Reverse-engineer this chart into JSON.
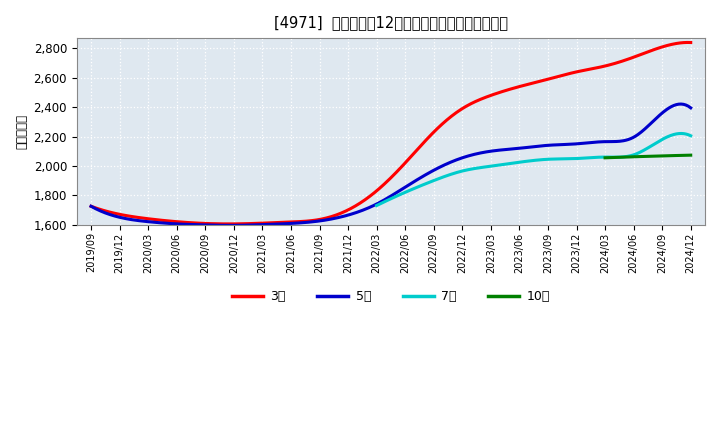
{
  "title": "[4971]  当期純利益12か月移動合計の平均値の推移",
  "ylabel": "（百万円）",
  "ylim": [
    1600,
    2870
  ],
  "yticks": [
    1600,
    1800,
    2000,
    2200,
    2400,
    2600,
    2800
  ],
  "background_color": "#ffffff",
  "plot_bg_color": "#dfe8f0",
  "grid_color": "#ffffff",
  "series": {
    "3year": {
      "color": "#ff0000",
      "label": "3年",
      "points": [
        [
          "2019/09",
          1725
        ],
        [
          "2019/12",
          1670
        ],
        [
          "2020/03",
          1640
        ],
        [
          "2020/06",
          1620
        ],
        [
          "2020/09",
          1608
        ],
        [
          "2020/12",
          1605
        ],
        [
          "2021/03",
          1610
        ],
        [
          "2021/06",
          1618
        ],
        [
          "2021/09",
          1635
        ],
        [
          "2021/12",
          1700
        ],
        [
          "2022/03",
          1830
        ],
        [
          "2022/06",
          2020
        ],
        [
          "2022/09",
          2230
        ],
        [
          "2022/12",
          2390
        ],
        [
          "2023/03",
          2480
        ],
        [
          "2023/06",
          2540
        ],
        [
          "2023/09",
          2590
        ],
        [
          "2023/12",
          2640
        ],
        [
          "2024/03",
          2680
        ],
        [
          "2024/06",
          2740
        ],
        [
          "2024/09",
          2810
        ],
        [
          "2024/12",
          2840
        ]
      ]
    },
    "5year": {
      "color": "#0000cc",
      "label": "5年",
      "points": [
        [
          "2019/09",
          1725
        ],
        [
          "2019/12",
          1650
        ],
        [
          "2020/03",
          1620
        ],
        [
          "2020/06",
          1605
        ],
        [
          "2020/09",
          1598
        ],
        [
          "2020/12",
          1595
        ],
        [
          "2021/03",
          1600
        ],
        [
          "2021/06",
          1608
        ],
        [
          "2021/09",
          1625
        ],
        [
          "2021/12",
          1665
        ],
        [
          "2022/03",
          1740
        ],
        [
          "2022/06",
          1855
        ],
        [
          "2022/09",
          1970
        ],
        [
          "2022/12",
          2055
        ],
        [
          "2023/03",
          2100
        ],
        [
          "2023/06",
          2120
        ],
        [
          "2023/09",
          2140
        ],
        [
          "2023/12",
          2150
        ],
        [
          "2024/03",
          2165
        ],
        [
          "2024/06",
          2195
        ],
        [
          "2024/09",
          2360
        ],
        [
          "2024/12",
          2395
        ]
      ]
    },
    "7year": {
      "color": "#00cccc",
      "label": "7年",
      "points": [
        [
          "2022/03",
          1730
        ],
        [
          "2022/06",
          1820
        ],
        [
          "2022/09",
          1900
        ],
        [
          "2022/12",
          1965
        ],
        [
          "2023/03",
          1998
        ],
        [
          "2023/06",
          2025
        ],
        [
          "2023/09",
          2045
        ],
        [
          "2023/12",
          2050
        ],
        [
          "2024/03",
          2060
        ],
        [
          "2024/06",
          2075
        ],
        [
          "2024/09",
          2180
        ],
        [
          "2024/12",
          2205
        ]
      ]
    },
    "10year": {
      "color": "#008000",
      "label": "10年",
      "points": [
        [
          "2024/03",
          2055
        ],
        [
          "2024/06",
          2062
        ],
        [
          "2024/09",
          2068
        ],
        [
          "2024/12",
          2073
        ]
      ]
    }
  },
  "legend_labels": [
    "3年",
    "5年",
    "7年",
    "10年"
  ],
  "legend_colors": [
    "#ff0000",
    "#0000cc",
    "#00cccc",
    "#008000"
  ],
  "xtick_labels": [
    "2019/09",
    "2019/12",
    "2020/03",
    "2020/06",
    "2020/09",
    "2020/12",
    "2021/03",
    "2021/06",
    "2021/09",
    "2021/12",
    "2022/03",
    "2022/06",
    "2022/09",
    "2022/12",
    "2023/03",
    "2023/06",
    "2023/09",
    "2023/12",
    "2024/03",
    "2024/06",
    "2024/09",
    "2024/12"
  ]
}
